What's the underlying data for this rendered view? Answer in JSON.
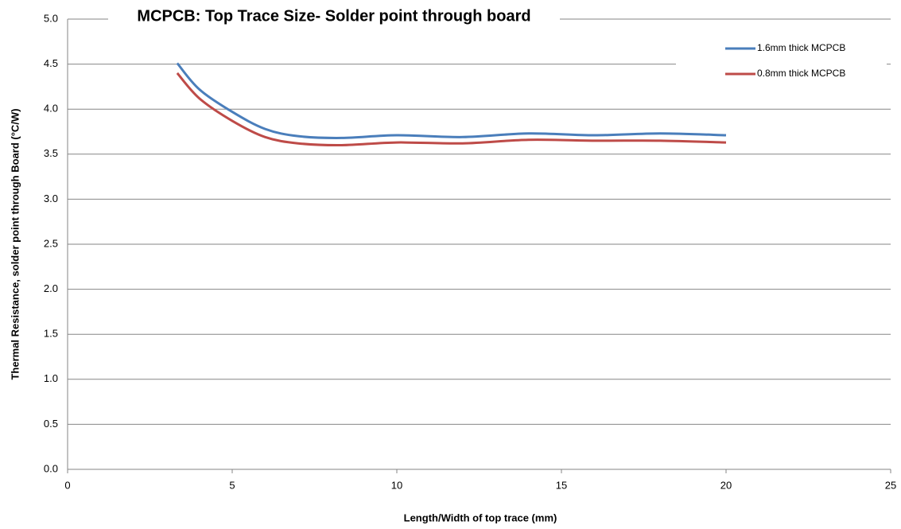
{
  "chart_data": {
    "type": "line",
    "title": "MCPCB: Top Trace Size- Solder point through board",
    "x_label": "Length/Width of top trace (mm)",
    "y_label": "Thermal Resistance, solder point through Board (°C/W)",
    "x": [
      3.33,
      4,
      5,
      6,
      7,
      8.33,
      10,
      12,
      14,
      16,
      18,
      20
    ],
    "series": [
      {
        "name": "1.6mm thick MCPCB",
        "color": "#4a7ebb",
        "values": [
          4.51,
          4.22,
          3.97,
          3.78,
          3.7,
          3.68,
          3.71,
          3.69,
          3.73,
          3.71,
          3.73,
          3.71
        ]
      },
      {
        "name": "0.8mm thick MCPCB",
        "color": "#be4b48",
        "values": [
          4.4,
          4.12,
          3.87,
          3.69,
          3.62,
          3.6,
          3.63,
          3.62,
          3.66,
          3.65,
          3.65,
          3.63
        ]
      }
    ],
    "xlim": [
      0,
      25
    ],
    "xticks": [
      0,
      5,
      10,
      15,
      20,
      25
    ],
    "ylim": [
      0,
      5
    ],
    "yticks": [
      {
        "value": 0,
        "label": "0.0"
      },
      {
        "value": 0.5,
        "label": "0.5"
      },
      {
        "value": 1,
        "label": "1.0"
      },
      {
        "value": 1.5,
        "label": "1.5"
      },
      {
        "value": 2,
        "label": "2.0"
      },
      {
        "value": 2.5,
        "label": "2.5"
      },
      {
        "value": 3,
        "label": "3.0"
      },
      {
        "value": 3.5,
        "label": "3.5"
      },
      {
        "value": 4,
        "label": "4.0"
      },
      {
        "value": 4.5,
        "label": "4.5"
      },
      {
        "value": 5,
        "label": "5.0"
      }
    ],
    "grid": true,
    "legend": "top-right"
  }
}
